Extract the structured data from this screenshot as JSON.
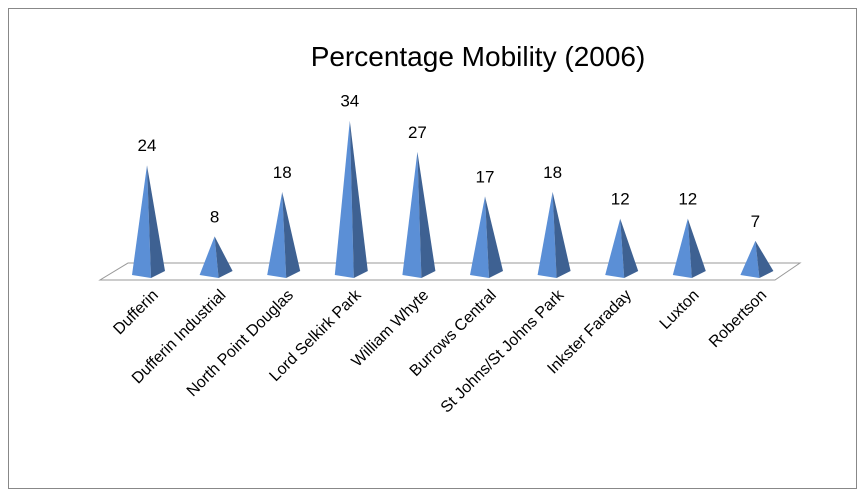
{
  "chart_data": {
    "type": "pyramid",
    "title": "Percentage Mobility (2006)",
    "categories": [
      "Dufferin",
      "Dufferin Industrial",
      "North Point Douglas",
      "Lord Selkirk Park",
      "William Whyte",
      "Burrows Central",
      "St Johns/St Johns Park",
      "Inkster Faraday",
      "Luxton",
      "Robertson"
    ],
    "values": [
      24,
      8,
      18,
      34,
      27,
      17,
      18,
      12,
      12,
      7
    ],
    "color": "#5b8fd6"
  }
}
